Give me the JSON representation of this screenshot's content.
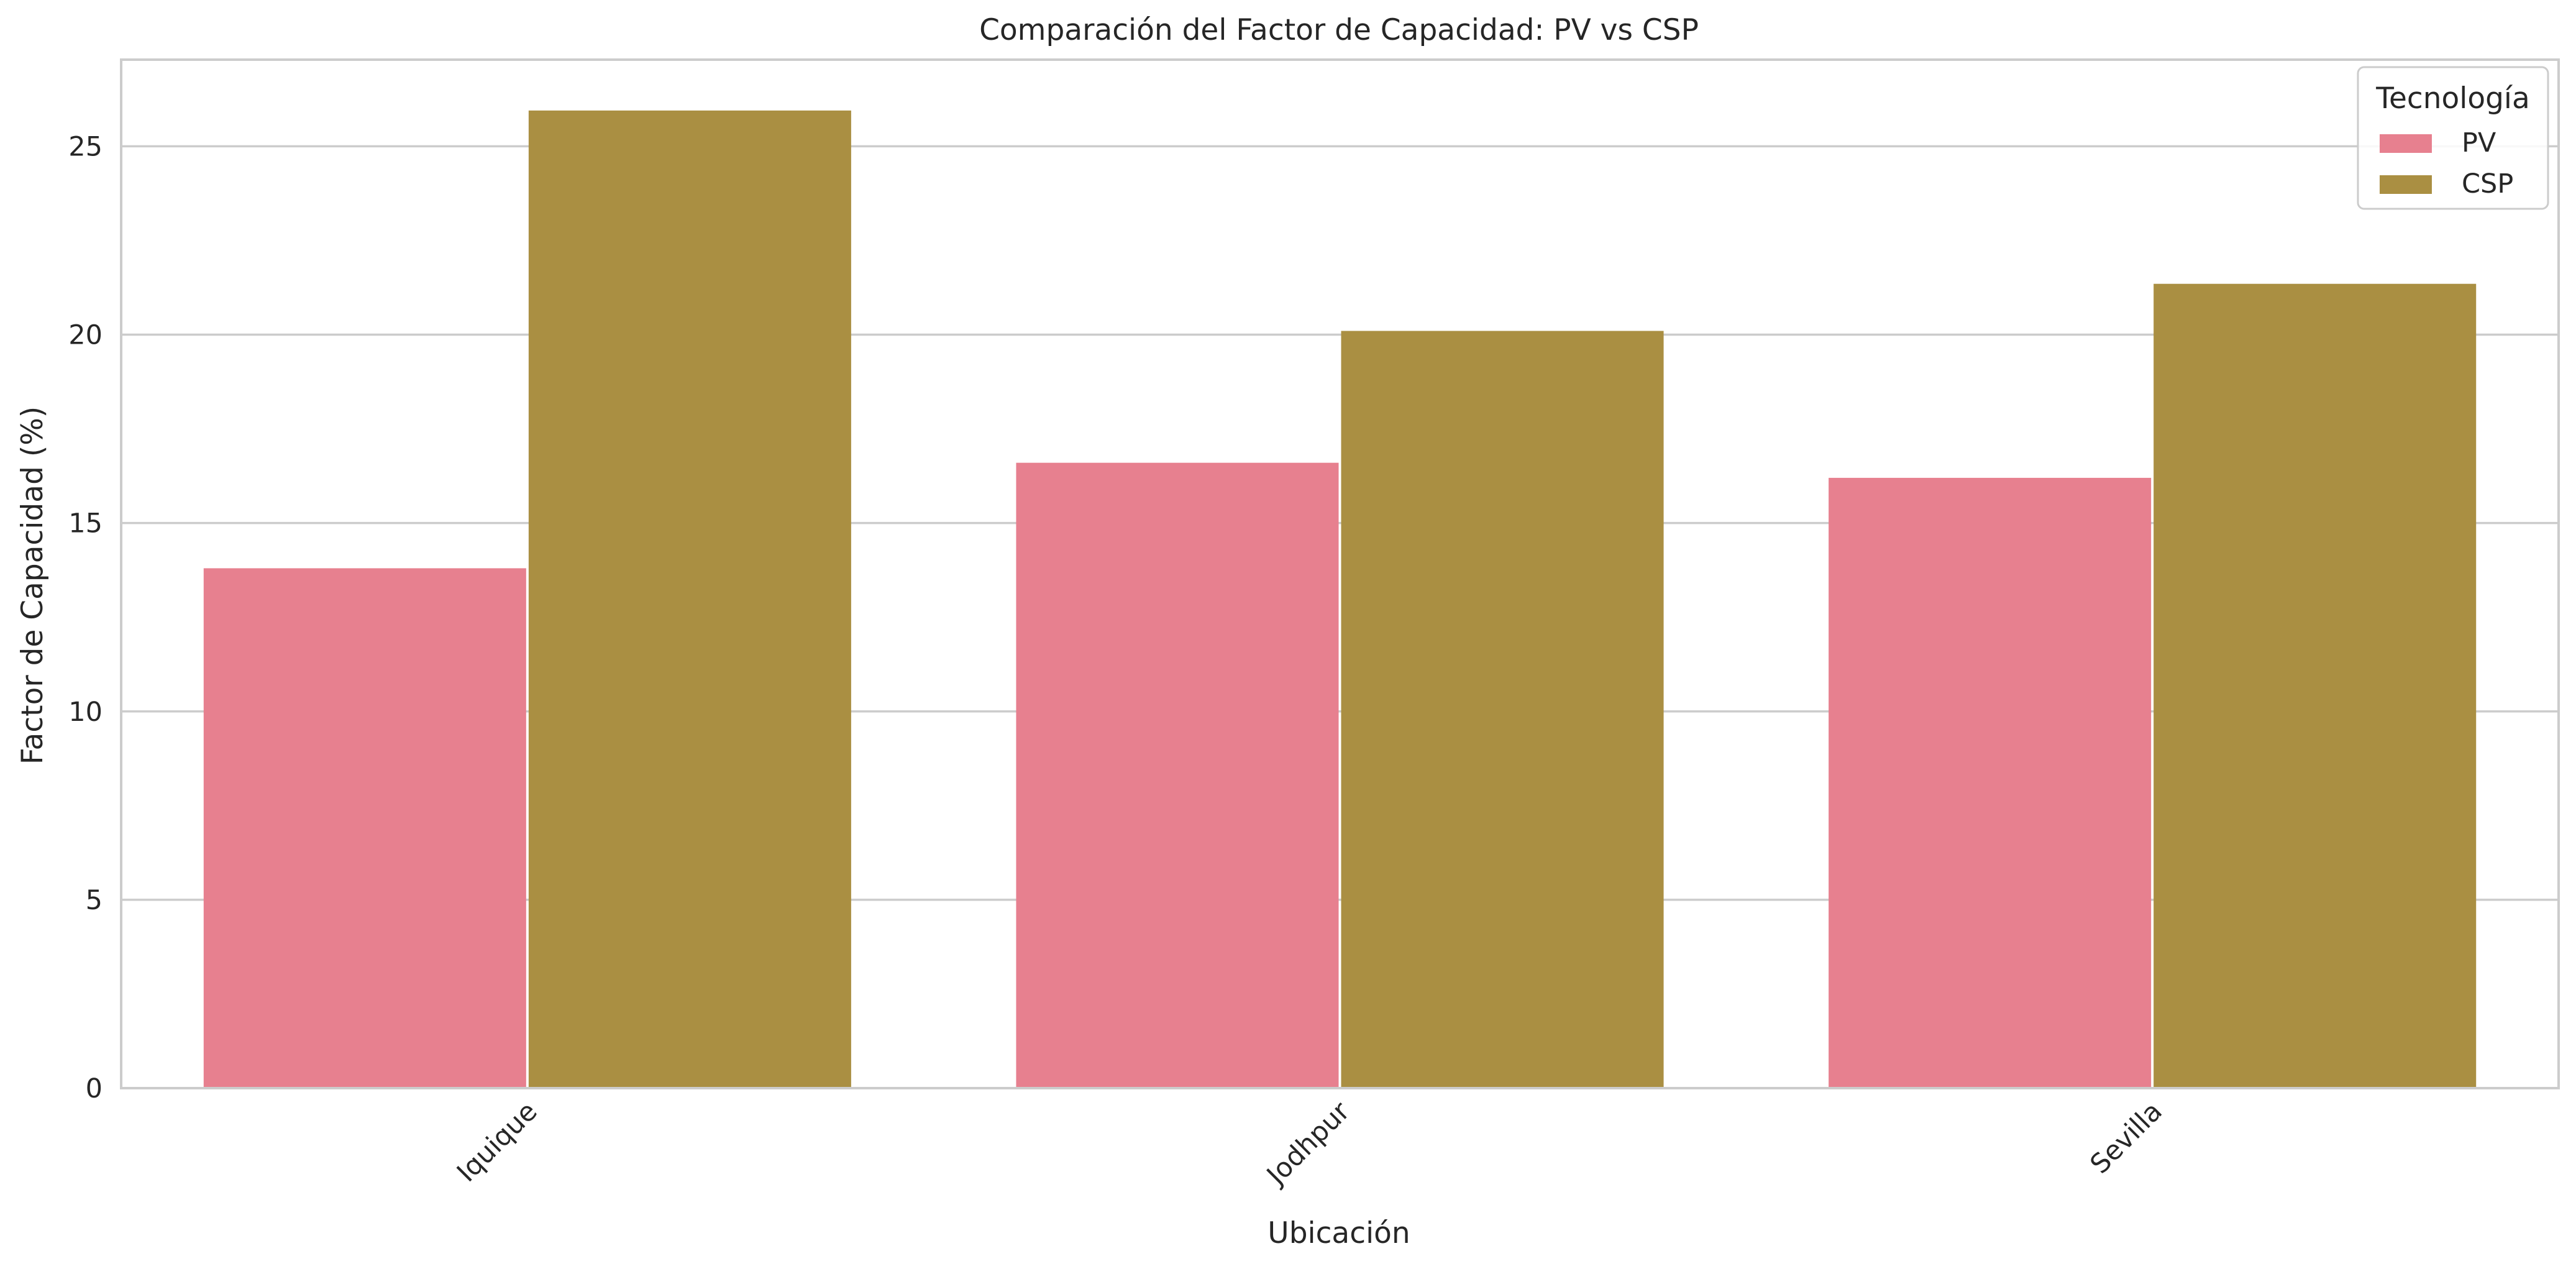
{
  "chart_data": {
    "type": "bar",
    "title": "Comparación del Factor de Capacidad: PV vs CSP",
    "xlabel": "Ubicación",
    "ylabel": "Factor de Capacidad (%)",
    "categories": [
      "Iquique",
      "Jodhpur",
      "Sevilla"
    ],
    "series": [
      {
        "name": "PV",
        "values": [
          13.8,
          16.6,
          16.2
        ],
        "color": "#e7808f"
      },
      {
        "name": "CSP",
        "values": [
          25.95,
          20.1,
          21.35
        ],
        "color": "#aa8f42"
      }
    ],
    "ylim": [
      0,
      27.3
    ],
    "yticks": [
      0,
      5,
      10,
      15,
      20,
      25
    ],
    "grid": true,
    "legend": {
      "title": "Tecnología",
      "placement": "top-right"
    },
    "tick_rotation": 45
  }
}
